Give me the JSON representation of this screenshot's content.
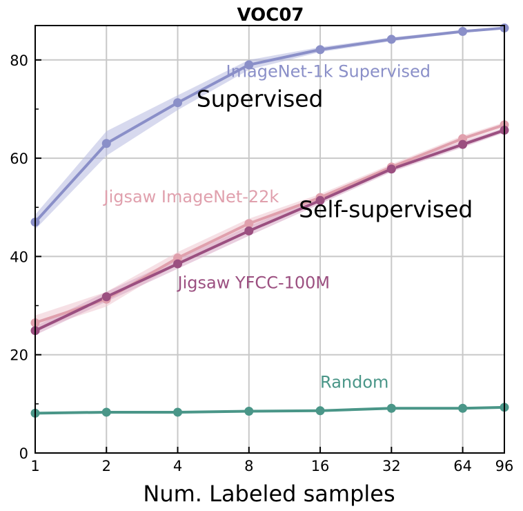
{
  "chart_data": {
    "type": "line",
    "title": "VOC07",
    "xlabel": "Num. Labeled samples",
    "ylabel": "",
    "x_scale": "log2",
    "x": [
      1,
      2,
      4,
      8,
      16,
      32,
      64,
      96
    ],
    "x_tick_labels": [
      "1",
      "2",
      "4",
      "8",
      "16",
      "32",
      "64",
      "96"
    ],
    "xlim": [
      1,
      96
    ],
    "ylim": [
      0,
      87
    ],
    "y_ticks": [
      0,
      20,
      40,
      60,
      80
    ],
    "y_tick_labels": [
      "0",
      "20",
      "40",
      "60",
      "80"
    ],
    "grid": true,
    "series": [
      {
        "name": "ImageNet-1k Supervised",
        "color": "#8a8fc8",
        "band_color": "#b7b9e0",
        "values": [
          47.0,
          63.0,
          71.3,
          79.0,
          82.1,
          84.2,
          85.8,
          86.5
        ],
        "lower": [
          45.5,
          60.5,
          69.8,
          78.0,
          81.6,
          83.8,
          85.5,
          86.3
        ],
        "upper": [
          48.5,
          65.5,
          72.8,
          80.0,
          82.6,
          84.6,
          86.1,
          86.7
        ]
      },
      {
        "name": "Jigsaw ImageNet-22k",
        "color": "#e0a0ad",
        "band_color": "#eec7cf",
        "values": [
          26.5,
          31.3,
          39.7,
          46.7,
          52.0,
          58.2,
          64.0,
          66.8
        ],
        "lower": [
          25.0,
          29.8,
          38.5,
          45.7,
          51.3,
          57.6,
          63.4,
          66.3
        ],
        "upper": [
          28.0,
          32.8,
          40.9,
          47.7,
          52.7,
          58.8,
          64.6,
          67.3
        ]
      },
      {
        "name": "Jigsaw YFCC-100M",
        "color": "#9b4f80",
        "band_color": "#d7a7c4",
        "values": [
          24.9,
          31.8,
          38.5,
          45.2,
          51.4,
          57.8,
          62.8,
          65.7
        ],
        "lower": [
          24.0,
          30.8,
          37.5,
          44.2,
          50.7,
          57.2,
          62.2,
          65.2
        ],
        "upper": [
          25.8,
          32.8,
          39.5,
          46.2,
          52.1,
          58.4,
          63.4,
          66.2
        ]
      },
      {
        "name": "Random",
        "color": "#4a9688",
        "band_color": "#9ccdc3",
        "values": [
          8.1,
          8.3,
          8.3,
          8.5,
          8.6,
          9.1,
          9.1,
          9.3
        ],
        "lower": [
          8.0,
          8.2,
          8.2,
          8.4,
          8.5,
          9.0,
          9.0,
          9.2
        ],
        "upper": [
          8.2,
          8.4,
          8.4,
          8.6,
          8.7,
          9.2,
          9.2,
          9.4
        ]
      }
    ],
    "annotations": [
      {
        "text": "ImageNet-1k Supervised",
        "color": "#8a8fc8",
        "x": 6.4,
        "y": 76.5
      },
      {
        "text": "Supervised",
        "color": "#000000",
        "x": 4.8,
        "y": 70.5
      },
      {
        "text": "Jigsaw ImageNet-22k",
        "color": "#e0a0ad",
        "x": 1.95,
        "y": 51.0
      },
      {
        "text": "Self-supervised",
        "color": "#000000",
        "x": 13.0,
        "y": 48.0
      },
      {
        "text": "Jigsaw YFCC-100M",
        "color": "#9b4f80",
        "x": 4.0,
        "y": 33.5
      },
      {
        "text": "Random",
        "color": "#4a9688",
        "x": 16.0,
        "y": 13.3
      }
    ]
  }
}
